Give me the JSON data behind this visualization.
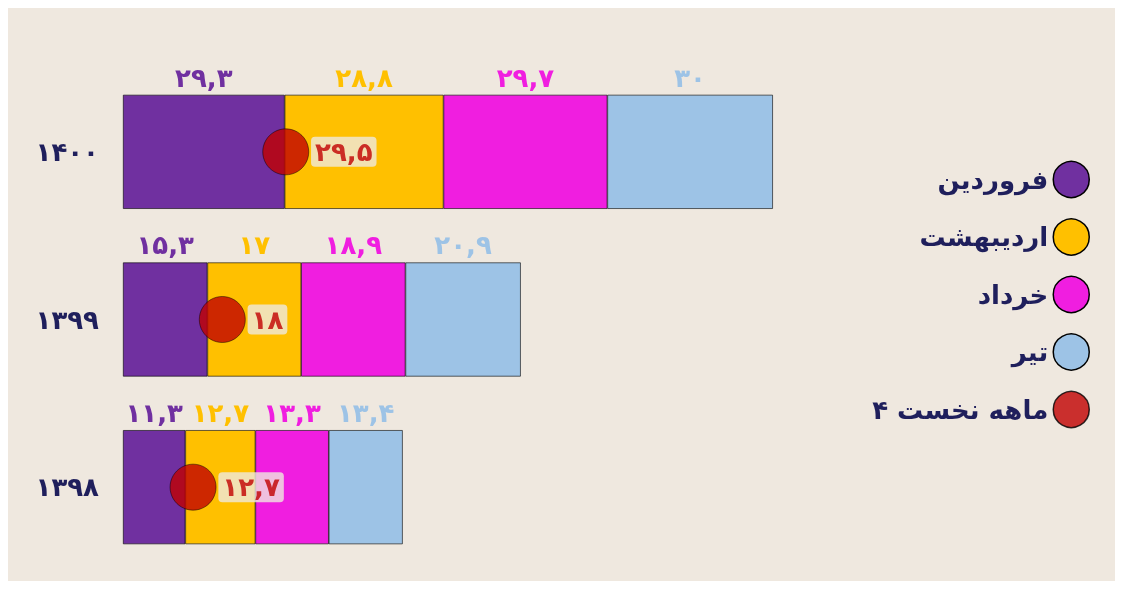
{
  "chart_data": {
    "type": "bar",
    "orientation": "horizontal",
    "stacked": true,
    "categories": [
      "۱۴۰۰",
      "۱۳۹۹",
      "۱۳۹۸"
    ],
    "series": [
      {
        "name": "فروردین",
        "color": "#7030a0",
        "values": [
          29.3,
          15.3,
          11.3
        ],
        "value_labels": [
          "۲۹,۳",
          "۱۵,۳",
          "۱۱,۳"
        ]
      },
      {
        "name": "اردیبهشت",
        "color": "#ffc000",
        "values": [
          28.8,
          17,
          12.7
        ],
        "value_labels": [
          "۲۸,۸",
          "۱۷",
          "۱۲,۷"
        ]
      },
      {
        "name": "خرداد",
        "color": "#f01ee0",
        "values": [
          29.7,
          18.9,
          13.3
        ],
        "value_labels": [
          "۲۹,۷",
          "۱۸,۹",
          "۱۳,۳"
        ]
      },
      {
        "name": "تیر",
        "color": "#9dc3e6",
        "values": [
          30,
          20.9,
          13.4
        ],
        "value_labels": [
          "۳۰",
          "۲۰,۹",
          "۱۳,۴"
        ]
      },
      {
        "name": "۴ ماهه نخست",
        "type": "scatter",
        "color": "#c00000",
        "values": [
          29.5,
          18,
          12.7
        ],
        "value_labels": [
          "۲۹,۵",
          "۱۸",
          "۱۲,۷"
        ]
      }
    ],
    "legend": "right",
    "grid": false,
    "tick_labels": "y",
    "marker": "circle"
  }
}
